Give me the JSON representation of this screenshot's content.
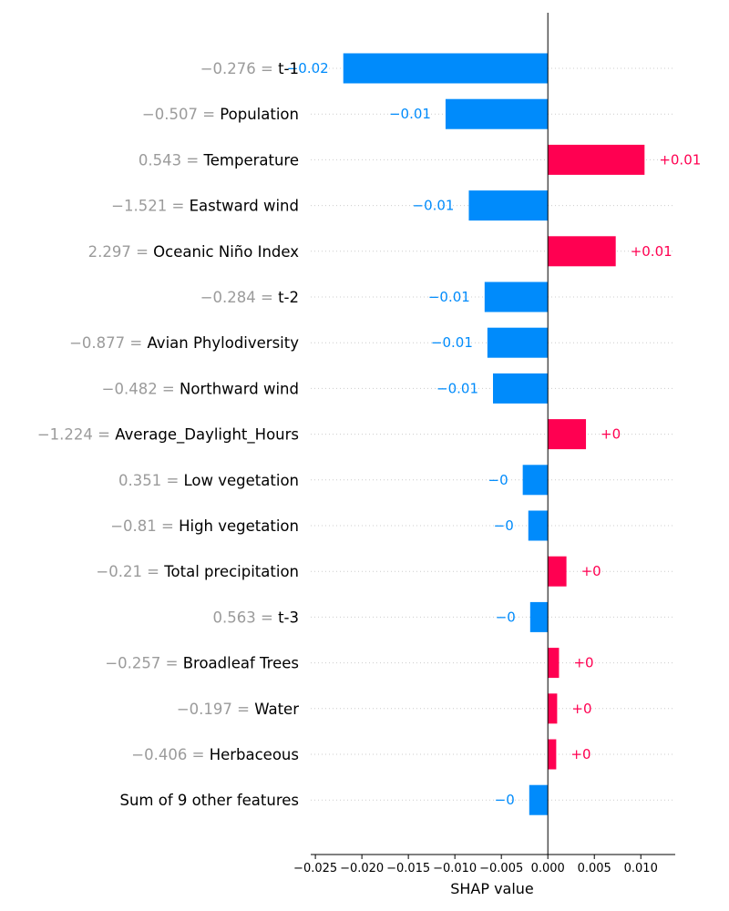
{
  "colors": {
    "positive": "#ff0051",
    "negative": "#008bfb",
    "gridline": "#cccccc",
    "feature_value_text": "#9b9b9b"
  },
  "chart_data": {
    "type": "bar",
    "orientation": "horizontal",
    "xlabel": "SHAP value",
    "xlim": [
      -0.0255,
      0.0137
    ],
    "xticks": [
      -0.025,
      -0.02,
      -0.015,
      -0.01,
      -0.005,
      0.0,
      0.005,
      0.01
    ],
    "xtick_labels": [
      "−0.025",
      "−0.020",
      "−0.015",
      "−0.010",
      "−0.005",
      "0.000",
      "0.005",
      "0.010"
    ],
    "grid": "dotted horizontal row lines",
    "features": [
      {
        "value_text": "−0.276 = ",
        "name": "t-1",
        "shap": -0.022,
        "label": "−0.02"
      },
      {
        "value_text": "−0.507 = ",
        "name": "Population",
        "shap": -0.011,
        "label": "−0.01"
      },
      {
        "value_text": "0.543 = ",
        "name": "Temperature",
        "shap": 0.0104,
        "label": "+0.01"
      },
      {
        "value_text": "−1.521 = ",
        "name": "Eastward wind",
        "shap": -0.0085,
        "label": "−0.01"
      },
      {
        "value_text": "2.297 = ",
        "name": "Oceanic Niño Index",
        "shap": 0.0073,
        "label": "+0.01"
      },
      {
        "value_text": "−0.284 = ",
        "name": "t-2",
        "shap": -0.0068,
        "label": "−0.01"
      },
      {
        "value_text": "−0.877 = ",
        "name": "Avian Phylodiversity",
        "shap": -0.0065,
        "label": "−0.01"
      },
      {
        "value_text": "−0.482 = ",
        "name": "Northward wind",
        "shap": -0.0059,
        "label": "−0.01"
      },
      {
        "value_text": "−1.224 = ",
        "name": "Average_Daylight_Hours",
        "shap": 0.0041,
        "label": "+0"
      },
      {
        "value_text": "0.351 = ",
        "name": "Low vegetation",
        "shap": -0.0027,
        "label": "−0"
      },
      {
        "value_text": "−0.81 = ",
        "name": "High vegetation",
        "shap": -0.0021,
        "label": "−0"
      },
      {
        "value_text": "−0.21 = ",
        "name": "Total precipitation",
        "shap": 0.002,
        "label": "+0"
      },
      {
        "value_text": "0.563 = ",
        "name": "t-3",
        "shap": -0.0019,
        "label": "−0"
      },
      {
        "value_text": "−0.257 = ",
        "name": "Broadleaf Trees",
        "shap": 0.0012,
        "label": "+0"
      },
      {
        "value_text": "−0.197 = ",
        "name": "Water",
        "shap": 0.001,
        "label": "+0"
      },
      {
        "value_text": "−0.406 = ",
        "name": "Herbaceous",
        "shap": 0.0009,
        "label": "+0"
      },
      {
        "value_text": "",
        "name": "Sum of 9 other features",
        "shap": -0.002,
        "label": "−0"
      }
    ]
  }
}
